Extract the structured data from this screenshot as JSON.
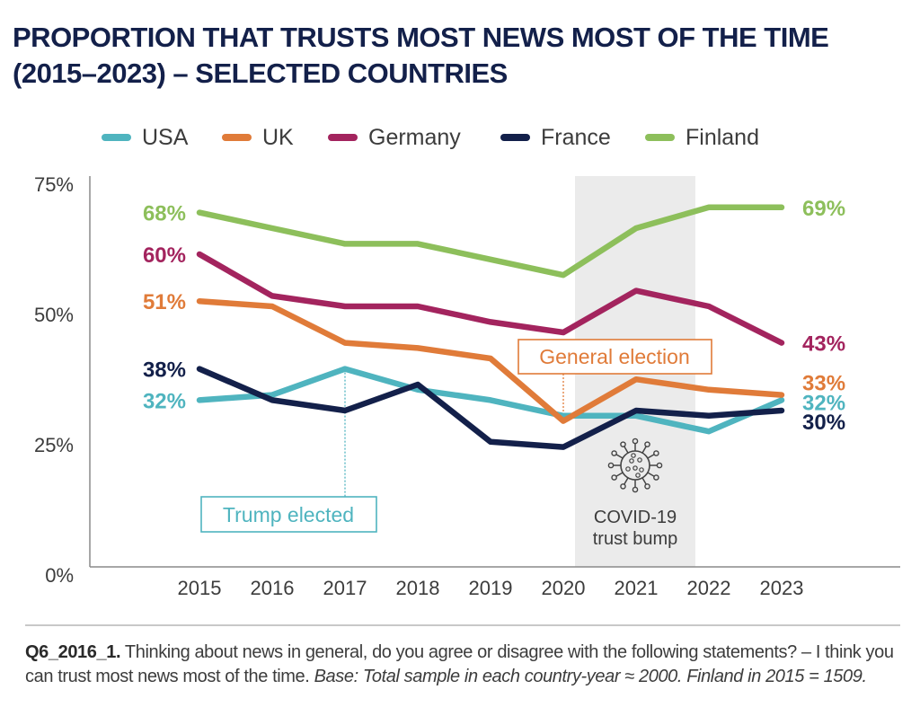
{
  "title": {
    "line1": "PROPORTION THAT TRUSTS MOST NEWS MOST OF THE TIME",
    "line2": "(2015–2023) – SELECTED COUNTRIES"
  },
  "colors": {
    "title": "#13204a",
    "axis": "#8a8a8a",
    "tick_text": "#3c3c3c",
    "covid_band": "#ebebeb"
  },
  "chart_data": {
    "type": "line",
    "title": "PROPORTION THAT TRUSTS MOST NEWS MOST OF THE TIME (2015–2023) – SELECTED COUNTRIES",
    "xlabel": "",
    "ylabel": "",
    "x": [
      "2015",
      "2016",
      "2017",
      "2018",
      "2019",
      "2020",
      "2021",
      "2022",
      "2023"
    ],
    "ylim": [
      0,
      75
    ],
    "yticks": [
      0,
      25,
      50,
      75
    ],
    "ytick_labels": [
      "0%",
      "25%",
      "50%",
      "75%"
    ],
    "grid": false,
    "legend_position": "top",
    "series": [
      {
        "name": "USA",
        "color": "#4fb4bf",
        "values": [
          32,
          33,
          38,
          34,
          32,
          29,
          29,
          26,
          32
        ],
        "start_label": "32%",
        "end_label": "32%"
      },
      {
        "name": "UK",
        "color": "#e07b39",
        "values": [
          51,
          50,
          43,
          42,
          40,
          28,
          36,
          34,
          33
        ],
        "start_label": "51%",
        "end_label": "33%"
      },
      {
        "name": "Germany",
        "color": "#a3245e",
        "values": [
          60,
          52,
          50,
          50,
          47,
          45,
          53,
          50,
          43
        ],
        "start_label": "60%",
        "end_label": "43%"
      },
      {
        "name": "France",
        "color": "#13204a",
        "values": [
          38,
          32,
          30,
          35,
          24,
          23,
          30,
          29,
          30
        ],
        "start_label": "38%",
        "end_label": "30%"
      },
      {
        "name": "Finland",
        "color": "#8dbf5b",
        "values": [
          68,
          65,
          62,
          62,
          59,
          56,
          65,
          69,
          69
        ],
        "start_label": "68%",
        "end_label": "69%"
      }
    ],
    "annotations": [
      {
        "id": "trump",
        "text": "Trump elected",
        "year": "2017",
        "series": "USA",
        "color": "#4fb4bf"
      },
      {
        "id": "election",
        "text": "General election",
        "year": "2020",
        "series": "UK",
        "color": "#e07b39"
      },
      {
        "id": "covid",
        "line1": "COVID-19",
        "line2": "trust bump",
        "from_year": "2020",
        "to_year": "2022",
        "icon": "virus-icon"
      }
    ]
  },
  "footer": {
    "question_id": "Q6_2016_1.",
    "question_text": " Thinking about news in general, do you agree or disagree with the following statements? – I think you can trust most news most of the time. ",
    "base_text": "Base: Total sample in each country-year ≈ 2000. Finland in 2015 = 1509."
  }
}
